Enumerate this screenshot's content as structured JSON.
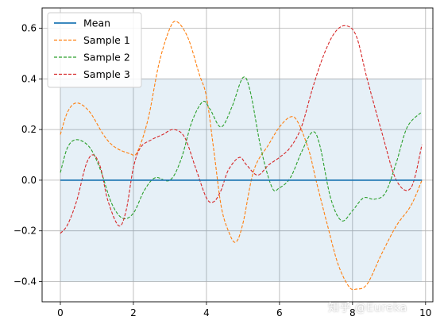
{
  "chart_data": {
    "type": "line",
    "title": "",
    "xlabel": "",
    "ylabel": "",
    "xlim": [
      -0.5,
      10.2
    ],
    "ylim": [
      -0.48,
      0.68
    ],
    "xticks": [
      0,
      2,
      4,
      6,
      8,
      10
    ],
    "xtick_labels": [
      "0",
      "2",
      "4",
      "6",
      "8",
      "10"
    ],
    "yticks": [
      -0.4,
      -0.2,
      0.0,
      0.2,
      0.4,
      0.6
    ],
    "ytick_labels": [
      "−0.4",
      "−0.2",
      "0.0",
      "0.2",
      "0.4",
      "0.6"
    ],
    "grid": true,
    "legend_position": "top-left",
    "band": {
      "x": [
        0,
        9.9
      ],
      "lower": -0.4,
      "upper": 0.4,
      "color": "#1f77b4",
      "opacity": 0.11
    },
    "series": [
      {
        "name": "Mean",
        "color": "#1f77b4",
        "style": "solid",
        "x": [
          0,
          9.9
        ],
        "y": [
          0.0,
          0.0
        ]
      },
      {
        "name": "Sample 1",
        "color": "#ff7f0e",
        "style": "dashed",
        "x": [
          0,
          0.2,
          0.45,
          0.8,
          1.2,
          1.5,
          1.9,
          2.1,
          2.4,
          2.7,
          3.0,
          3.2,
          3.5,
          3.8,
          4.0,
          4.2,
          4.4,
          4.6,
          4.8,
          5.0,
          5.3,
          5.7,
          6.0,
          6.3,
          6.5,
          6.8,
          7.0,
          7.3,
          7.6,
          7.9,
          8.1,
          8.4,
          8.8,
          9.2,
          9.6,
          9.9
        ],
        "y": [
          0.18,
          0.27,
          0.305,
          0.27,
          0.175,
          0.13,
          0.105,
          0.11,
          0.24,
          0.46,
          0.6,
          0.625,
          0.56,
          0.42,
          0.33,
          0.12,
          -0.1,
          -0.2,
          -0.245,
          -0.17,
          0.04,
          0.14,
          0.21,
          0.25,
          0.23,
          0.12,
          0.0,
          -0.17,
          -0.33,
          -0.42,
          -0.43,
          -0.41,
          -0.29,
          -0.18,
          -0.1,
          -0.0
        ]
      },
      {
        "name": "Sample 2",
        "color": "#2ca02c",
        "style": "dashed",
        "x": [
          0,
          0.2,
          0.45,
          0.8,
          1.1,
          1.4,
          1.7,
          2.0,
          2.3,
          2.6,
          3.0,
          3.3,
          3.6,
          3.9,
          4.1,
          4.4,
          4.7,
          5.0,
          5.2,
          5.5,
          5.8,
          6.0,
          6.3,
          6.6,
          6.9,
          7.1,
          7.4,
          7.7,
          8.0,
          8.3,
          8.6,
          8.9,
          9.2,
          9.5,
          9.9
        ],
        "y": [
          0.03,
          0.13,
          0.16,
          0.13,
          0.04,
          -0.09,
          -0.15,
          -0.13,
          -0.04,
          0.01,
          0.0,
          0.08,
          0.23,
          0.31,
          0.28,
          0.21,
          0.29,
          0.405,
          0.35,
          0.12,
          -0.03,
          -0.03,
          0.01,
          0.11,
          0.19,
          0.14,
          -0.07,
          -0.16,
          -0.12,
          -0.07,
          -0.075,
          -0.05,
          0.07,
          0.21,
          0.27
        ]
      },
      {
        "name": "Sample 3",
        "color": "#d62728",
        "style": "dashed",
        "x": [
          0,
          0.2,
          0.45,
          0.7,
          0.9,
          1.1,
          1.3,
          1.6,
          1.8,
          2.0,
          2.2,
          2.5,
          2.8,
          3.1,
          3.4,
          3.7,
          4.0,
          4.2,
          4.4,
          4.6,
          4.9,
          5.1,
          5.4,
          5.7,
          6.0,
          6.3,
          6.6,
          6.9,
          7.2,
          7.5,
          7.8,
          8.1,
          8.4,
          8.8,
          9.2,
          9.6,
          9.9
        ],
        "y": [
          -0.21,
          -0.175,
          -0.08,
          0.06,
          0.1,
          0.05,
          -0.08,
          -0.18,
          -0.12,
          0.05,
          0.13,
          0.16,
          0.18,
          0.2,
          0.17,
          0.05,
          -0.07,
          -0.085,
          -0.04,
          0.04,
          0.09,
          0.06,
          0.02,
          0.06,
          0.09,
          0.13,
          0.21,
          0.36,
          0.49,
          0.58,
          0.61,
          0.57,
          0.4,
          0.19,
          0.0,
          -0.03,
          0.14
        ]
      }
    ]
  },
  "watermark": "知乎 @Eureka"
}
